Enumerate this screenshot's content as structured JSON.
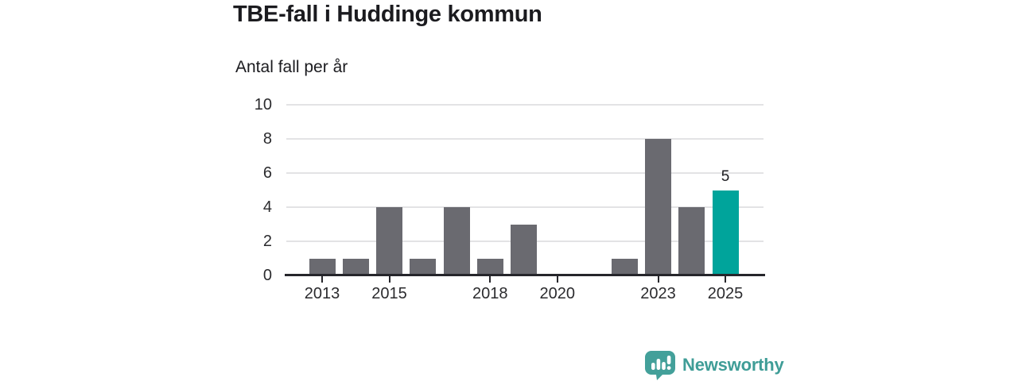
{
  "header": {
    "title": "TBE-fall i Huddinge kommun",
    "subtitle": "Antal fall per år"
  },
  "chart_data": {
    "type": "bar",
    "title": "TBE-fall i Huddinge kommun",
    "subtitle": "Antal fall per år",
    "categories": [
      2013,
      2014,
      2015,
      2016,
      2017,
      2018,
      2019,
      2020,
      2021,
      2022,
      2023,
      2024,
      2025
    ],
    "values": [
      1,
      1,
      4,
      1,
      4,
      1,
      3,
      0,
      0,
      1,
      8,
      4,
      5
    ],
    "highlight_index": 12,
    "highlight_label": "5",
    "xlabel": "",
    "ylabel": "Antal fall per år",
    "ylim": [
      0,
      10
    ],
    "yticks": [
      0,
      2,
      4,
      6,
      8,
      10
    ],
    "xticks": [
      2013,
      2015,
      2018,
      2020,
      2023,
      2025
    ],
    "grid": true,
    "legend": "none",
    "bar_color": "#6a6a70",
    "highlight_color": "#00a49b"
  },
  "footer": {
    "brand": "Newsworthy",
    "brand_color": "#3f9d97",
    "logo_icon": "bar-chart-speech-bubble-icon"
  }
}
